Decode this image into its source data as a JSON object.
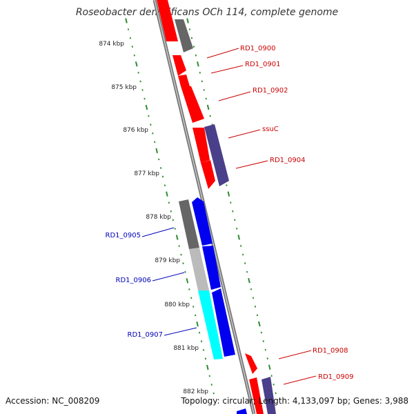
{
  "title": "Roseobacter denitrificans OCh 114, complete genome",
  "footer": {
    "accession": "Accession: NC_008209",
    "stats": "Topology: circular; Length: 4,133,097 bp; Genes: 3,988"
  },
  "colors": {
    "backbone": "#888888",
    "ruler_tick": "#2e8b2e",
    "red_gene": "#ff0000",
    "dark_gray_gene": "#666666",
    "light_gray_gene": "#bbbbbb",
    "navy_gene": "#4a3f8a",
    "blue_gene": "#0000ee",
    "cyan_gene": "#00ffff",
    "label_red": "#cc0000",
    "label_blue": "#0000bb"
  },
  "ruler_left": [
    "874 kbp",
    "875 kbp",
    "876 kbp",
    "877 kbp",
    "878 kbp",
    "879 kbp",
    "880 kbp",
    "881 kbp",
    "882 kbp"
  ],
  "labels_right": [
    "RD1_0900",
    "RD1_0901",
    "RD1_0902",
    "ssuC",
    "RD1_0904",
    "RD1_0908",
    "RD1_0909"
  ],
  "labels_left": [
    "RD1_0905",
    "RD1_0906",
    "RD1_0907"
  ]
}
